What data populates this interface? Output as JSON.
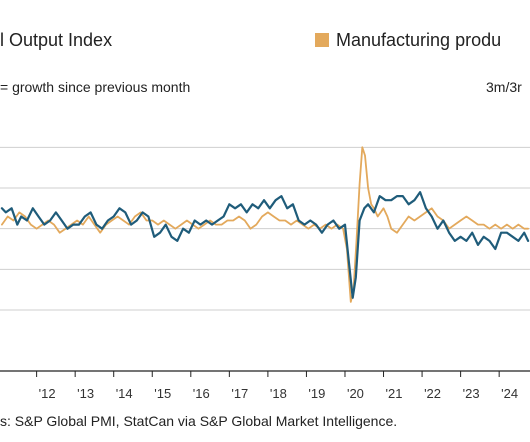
{
  "chart_data": {
    "type": "line",
    "title": "",
    "legend": [
      {
        "label": "l Output Index",
        "color": "#1f5c7a"
      },
      {
        "label": "Manufacturing produ",
        "color": "#e3a95c"
      }
    ],
    "left_note": "= growth since previous month",
    "right_note": "3m/3r",
    "xlabel": "",
    "ylabel": "",
    "x_tick_labels": [
      "'12",
      "'13",
      "'14",
      "'15",
      "'16",
      "'17",
      "'18",
      "'19",
      "'20",
      "'21",
      "'22",
      "'23",
      "'24"
    ],
    "x_range": [
      2011.05,
      2024.8
    ],
    "y_range": [
      -3.5,
      2.5
    ],
    "gridlines_y": [
      2,
      1,
      0,
      -1,
      -2
    ],
    "grid": true,
    "series": [
      {
        "color": "#1f5c7a",
        "x": [
          2011.1,
          2011.2,
          2011.35,
          2011.5,
          2011.6,
          2011.75,
          2011.9,
          2012.05,
          2012.2,
          2012.35,
          2012.5,
          2012.65,
          2012.8,
          2012.95,
          2013.1,
          2013.25,
          2013.4,
          2013.55,
          2013.7,
          2013.85,
          2014.0,
          2014.15,
          2014.3,
          2014.45,
          2014.6,
          2014.75,
          2014.9,
          2015.05,
          2015.2,
          2015.35,
          2015.5,
          2015.65,
          2015.8,
          2015.95,
          2016.1,
          2016.25,
          2016.4,
          2016.55,
          2016.7,
          2016.85,
          2017.0,
          2017.15,
          2017.3,
          2017.45,
          2017.6,
          2017.75,
          2017.9,
          2018.05,
          2018.2,
          2018.35,
          2018.5,
          2018.65,
          2018.8,
          2018.95,
          2019.1,
          2019.25,
          2019.4,
          2019.55,
          2019.7,
          2019.85,
          2020.0,
          2020.1,
          2020.2,
          2020.28,
          2020.38,
          2020.5,
          2020.6,
          2020.75,
          2020.9,
          2021.05,
          2021.2,
          2021.35,
          2021.5,
          2021.65,
          2021.8,
          2021.95,
          2022.1,
          2022.25,
          2022.4,
          2022.55,
          2022.7,
          2022.85,
          2023.0,
          2023.15,
          2023.3,
          2023.45,
          2023.6,
          2023.75,
          2023.9,
          2024.05,
          2024.2,
          2024.35,
          2024.5,
          2024.65,
          2024.75
        ],
        "y": [
          0.5,
          0.4,
          0.5,
          0.1,
          0.3,
          0.2,
          0.5,
          0.3,
          0.1,
          0.2,
          0.4,
          0.2,
          0.0,
          0.1,
          0.1,
          0.3,
          0.4,
          0.1,
          0.0,
          0.2,
          0.3,
          0.5,
          0.4,
          0.1,
          0.2,
          0.4,
          0.3,
          -0.2,
          -0.1,
          0.1,
          -0.2,
          -0.3,
          0.0,
          -0.1,
          0.2,
          0.1,
          0.2,
          0.1,
          0.2,
          0.3,
          0.6,
          0.5,
          0.6,
          0.4,
          0.6,
          0.5,
          0.7,
          0.5,
          0.7,
          0.8,
          0.5,
          0.6,
          0.2,
          0.1,
          0.2,
          0.1,
          -0.1,
          0.1,
          0.2,
          0.0,
          0.1,
          -0.8,
          -1.7,
          -1.2,
          0.2,
          0.5,
          0.6,
          0.4,
          0.8,
          0.7,
          0.7,
          0.8,
          0.8,
          0.6,
          0.7,
          0.9,
          0.5,
          0.3,
          0.0,
          0.2,
          -0.1,
          -0.3,
          -0.2,
          -0.3,
          -0.1,
          -0.4,
          -0.2,
          -0.3,
          -0.5,
          -0.1,
          -0.1,
          -0.2,
          -0.3,
          -0.1,
          -0.3
        ]
      },
      {
        "color": "#e3a95c",
        "x": [
          2011.1,
          2011.25,
          2011.4,
          2011.55,
          2011.7,
          2011.85,
          2012.0,
          2012.15,
          2012.3,
          2012.45,
          2012.6,
          2012.75,
          2012.9,
          2013.05,
          2013.2,
          2013.35,
          2013.5,
          2013.65,
          2013.8,
          2013.95,
          2014.1,
          2014.25,
          2014.4,
          2014.55,
          2014.7,
          2014.85,
          2015.0,
          2015.15,
          2015.3,
          2015.45,
          2015.6,
          2015.75,
          2015.9,
          2016.05,
          2016.2,
          2016.35,
          2016.5,
          2016.65,
          2016.8,
          2016.95,
          2017.1,
          2017.25,
          2017.4,
          2017.55,
          2017.7,
          2017.85,
          2018.0,
          2018.15,
          2018.3,
          2018.45,
          2018.6,
          2018.75,
          2018.9,
          2019.05,
          2019.2,
          2019.35,
          2019.5,
          2019.65,
          2019.8,
          2019.95,
          2020.05,
          2020.15,
          2020.22,
          2020.3,
          2020.38,
          2020.45,
          2020.52,
          2020.6,
          2020.68,
          2020.75,
          2020.85,
          2021.0,
          2021.1,
          2021.2,
          2021.35,
          2021.5,
          2021.65,
          2021.8,
          2021.95,
          2022.1,
          2022.25,
          2022.4,
          2022.55,
          2022.7,
          2022.85,
          2023.0,
          2023.15,
          2023.3,
          2023.45,
          2023.6,
          2023.75,
          2023.9,
          2024.05,
          2024.2,
          2024.35,
          2024.5,
          2024.65,
          2024.75
        ],
        "y": [
          0.1,
          0.3,
          0.2,
          0.4,
          0.3,
          0.1,
          0.0,
          0.1,
          0.2,
          0.1,
          -0.1,
          0.0,
          0.1,
          0.2,
          0.1,
          0.3,
          0.1,
          -0.1,
          0.1,
          0.2,
          0.3,
          0.2,
          0.1,
          0.3,
          0.4,
          0.2,
          0.2,
          0.1,
          0.2,
          0.1,
          0.0,
          0.1,
          0.2,
          0.1,
          0.0,
          0.1,
          0.2,
          0.1,
          0.1,
          0.2,
          0.2,
          0.3,
          0.2,
          0.0,
          0.1,
          0.3,
          0.4,
          0.3,
          0.2,
          0.2,
          0.1,
          0.2,
          0.1,
          0.0,
          0.1,
          0.0,
          0.1,
          0.0,
          0.1,
          0.0,
          -0.5,
          -1.8,
          -1.5,
          -0.3,
          1.1,
          2.0,
          1.8,
          1.0,
          0.6,
          0.5,
          0.3,
          0.5,
          0.3,
          0.0,
          -0.1,
          0.1,
          0.3,
          0.2,
          0.3,
          0.4,
          0.5,
          0.3,
          0.2,
          0.0,
          0.1,
          0.2,
          0.3,
          0.2,
          0.1,
          0.1,
          0.0,
          0.1,
          0.0,
          0.1,
          0.0,
          0.1,
          0.0,
          0.0
        ]
      }
    ]
  },
  "source": "s: S&P Global PMI, StatCan via S&P Global Market Intelligence."
}
